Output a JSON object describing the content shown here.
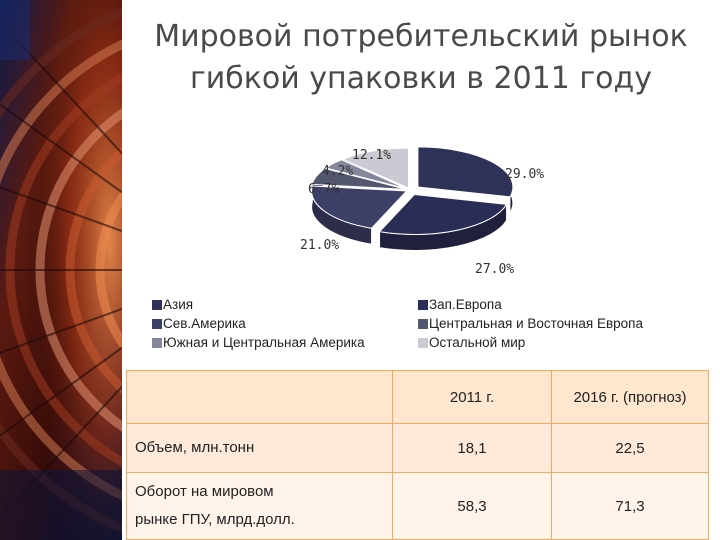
{
  "title": {
    "line1": "Мировой потребительский рынок",
    "line2": "гибкой упаковки в 2011 году"
  },
  "chart_data": {
    "type": "pie",
    "title": "Мировой потребительский рынок гибкой упаковки в 2011 году",
    "labels_format": "percent",
    "slices": [
      {
        "name": "Азия",
        "value": 29.0,
        "label": "29.0%",
        "color": "#2e3158"
      },
      {
        "name": "Зап.Европа",
        "value": 27.0,
        "label": "27.0%",
        "color": "#2a2d55"
      },
      {
        "name": "Сев.Америка",
        "value": 21.0,
        "label": "21.0%",
        "color": "#3c3f66"
      },
      {
        "name": "Центральная и Восточная Европа",
        "value": 6.7,
        "label": "6.7%",
        "color": "#52566e"
      },
      {
        "name": "Южная и Центральная Америка",
        "value": 4.2,
        "label": "4.2%",
        "color": "#85889c"
      },
      {
        "name": "Остальной мир",
        "value": 12.1,
        "label": "12.1%",
        "color": "#c9cad2"
      }
    ],
    "legend_placement": "bottom",
    "legend": {
      "left": [
        "Азия",
        "Сев.Америка",
        "Южная и Центральная Америка"
      ],
      "right": [
        "Зап.Европа",
        "Центральная и Восточная Европа",
        "Остальной мир"
      ]
    }
  },
  "table": {
    "header": [
      "",
      "2011 г.",
      "2016 г. (прогноз)"
    ],
    "rows": [
      {
        "label_lines": [
          "Объем, млн.тонн"
        ],
        "v2011": "18,1",
        "v2016": "22,5"
      },
      {
        "label_lines": [
          "Оборот на мировом",
          "рынке ГПУ, млрд.долл."
        ],
        "v2011": "58,3",
        "v2016": "71,3"
      }
    ]
  },
  "colors": {
    "title": "#4a4a4a",
    "table_border": "#f4a95c",
    "table_header_bg": "#ffe7cf",
    "table_row_bg": "#fdeadb"
  }
}
